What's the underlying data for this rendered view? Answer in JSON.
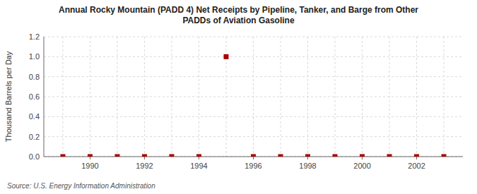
{
  "chart_data": {
    "type": "scatter",
    "title": "Annual Rocky Mountain (PADD 4) Net Receipts by Pipeline, Tanker, and Barge from Other\nPADDs of Aviation Gasoline",
    "y_label": "Thousand Barrels per Day",
    "source": "Source: U.S. Energy Information Administration",
    "x": [
      1989,
      1990,
      1991,
      1992,
      1993,
      1994,
      1995,
      1996,
      1997,
      1998,
      1999,
      2000,
      2001,
      2002,
      2003
    ],
    "values": [
      0.0,
      0.0,
      0.0,
      0.0,
      0.0,
      0.0,
      1.0,
      0.0,
      0.0,
      0.0,
      0.0,
      0.0,
      0.0,
      0.0,
      0.0
    ],
    "color": "#AA0000",
    "marker": "square",
    "xlim": [
      1988.3,
      2003.7
    ],
    "ylim": [
      0.0,
      1.2
    ],
    "xticks": [
      1990,
      1992,
      1994,
      1996,
      1998,
      2000,
      2002
    ],
    "yticks": [
      {
        "value": 0.0,
        "label": "0.0"
      },
      0.2,
      0.4,
      0.6,
      0.8,
      {
        "value": 1.0,
        "label": "1.0"
      },
      1.2
    ],
    "grid": true
  }
}
